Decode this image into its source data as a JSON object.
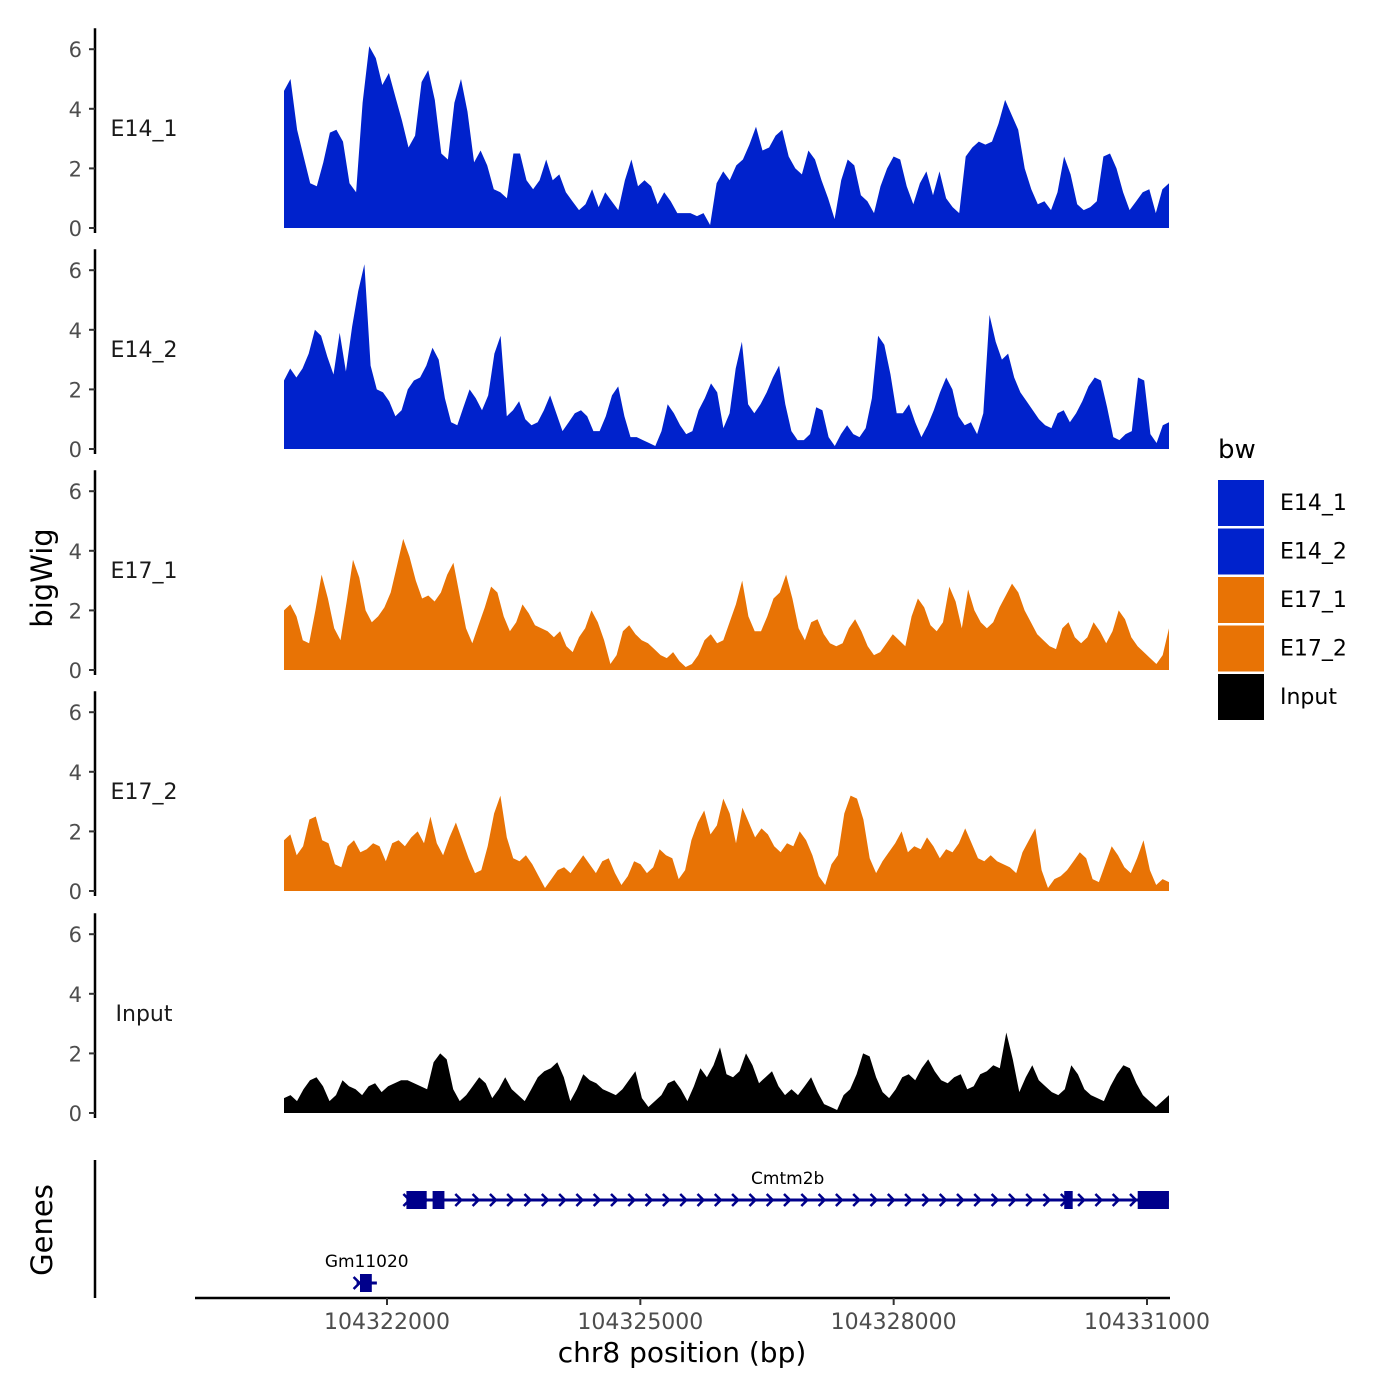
{
  "chart_data": {
    "type": "area",
    "y_axis_title": "bigWig",
    "genes_axis_title": "Genes",
    "x_axis_title": "chr8 position (bp)",
    "x_range": [
      104319300,
      104331300
    ],
    "x_ticks": [
      {
        "value": 104322000,
        "label": "104322000"
      },
      {
        "value": 104325000,
        "label": "104325000"
      },
      {
        "value": 104328000,
        "label": "104328000"
      },
      {
        "value": 104331000,
        "label": "104331000"
      }
    ],
    "y_range": [
      0,
      6.5
    ],
    "y_ticks": [
      {
        "value": 0,
        "label": "0"
      },
      {
        "value": 2,
        "label": "2"
      },
      {
        "value": 4,
        "label": "4"
      },
      {
        "value": 6,
        "label": "6"
      }
    ],
    "x_start": 104320780,
    "x_end": 104331260,
    "legend": {
      "title": "bw",
      "placement": "right",
      "entries": [
        {
          "name": "E14_1",
          "color": "#0022CC"
        },
        {
          "name": "E14_2",
          "color": "#0022CC"
        },
        {
          "name": "E17_1",
          "color": "#E87305"
        },
        {
          "name": "E17_2",
          "color": "#E87305"
        },
        {
          "name": "Input",
          "color": "#000000"
        }
      ]
    },
    "series": [
      {
        "name": "E14_1",
        "color": "#0022CC",
        "values": [
          4.6,
          5,
          3.3,
          2.4,
          1.5,
          1.4,
          2.2,
          3.2,
          3.3,
          2.9,
          1.5,
          1.2,
          4.2,
          6.1,
          5.7,
          4.8,
          5.2,
          4.4,
          3.6,
          2.7,
          3.1,
          4.9,
          5.3,
          4.3,
          2.5,
          2.3,
          4.2,
          5,
          3.9,
          2.2,
          2.6,
          2.1,
          1.3,
          1.2,
          1,
          2.5,
          2.5,
          1.6,
          1.3,
          1.6,
          2.3,
          1.6,
          1.8,
          1.2,
          0.9,
          0.6,
          0.8,
          1.3,
          0.7,
          1.2,
          0.9,
          0.6,
          1.6,
          2.3,
          1.4,
          1.6,
          1.4,
          0.8,
          1.2,
          0.9,
          0.5,
          0.5,
          0.5,
          0.4,
          0.5,
          0.1,
          1.5,
          1.9,
          1.6,
          2.1,
          2.3,
          2.8,
          3.4,
          2.6,
          2.7,
          3.1,
          3.3,
          2.4,
          2,
          1.8,
          2.6,
          2.3,
          1.6,
          1,
          0.3,
          1.6,
          2.3,
          2.1,
          1.1,
          0.9,
          0.5,
          1.4,
          2,
          2.4,
          2.3,
          1.4,
          0.8,
          1.5,
          1.9,
          1.1,
          1.9,
          1,
          0.7,
          0.5,
          2.4,
          2.7,
          2.9,
          2.8,
          2.9,
          3.5,
          4.3,
          3.8,
          3.3,
          2,
          1.3,
          0.8,
          0.9,
          0.6,
          1.2,
          2.4,
          1.8,
          0.8,
          0.6,
          0.7,
          0.9,
          2.4,
          2.5,
          2,
          1.2,
          0.6,
          0.9,
          1.2,
          1.3,
          0.5,
          1.3,
          1.5
        ]
      },
      {
        "name": "E14_2",
        "color": "#0022CC",
        "values": [
          2.3,
          2.7,
          2.4,
          2.7,
          3.2,
          4,
          3.8,
          3.1,
          2.5,
          3.9,
          2.6,
          4.1,
          5.3,
          6.2,
          2.8,
          2,
          1.9,
          1.6,
          1.1,
          1.3,
          2,
          2.3,
          2.4,
          2.8,
          3.4,
          3,
          1.7,
          0.9,
          0.8,
          1.4,
          2,
          1.7,
          1.3,
          1.8,
          3.2,
          3.8,
          1.1,
          1.3,
          1.6,
          1,
          0.8,
          0.9,
          1.3,
          1.8,
          1.2,
          0.6,
          0.9,
          1.2,
          1.3,
          1.1,
          0.6,
          0.6,
          1.1,
          1.8,
          2.1,
          1.1,
          0.4,
          0.4,
          0.3,
          0.2,
          0.1,
          0.6,
          1.5,
          1.2,
          0.8,
          0.5,
          0.6,
          1.3,
          1.7,
          2.2,
          1.9,
          0.7,
          1.2,
          2.7,
          3.6,
          1.5,
          1.2,
          1.5,
          1.9,
          2.4,
          2.8,
          1.5,
          0.6,
          0.3,
          0.3,
          0.5,
          1.4,
          1.3,
          0.4,
          0.1,
          0.5,
          0.8,
          0.5,
          0.4,
          0.7,
          1.7,
          3.8,
          3.5,
          2.5,
          1.2,
          1.2,
          1.5,
          0.9,
          0.4,
          0.8,
          1.3,
          1.9,
          2.4,
          2,
          1.1,
          0.8,
          0.9,
          0.5,
          1.2,
          4.5,
          3.6,
          3,
          3.2,
          2.4,
          1.9,
          1.6,
          1.3,
          1,
          0.8,
          0.7,
          1.2,
          1.3,
          0.9,
          1.2,
          1.6,
          2.1,
          2.4,
          2.3,
          1.4,
          0.4,
          0.3,
          0.5,
          0.6,
          2.4,
          2.3,
          0.5,
          0.2,
          0.8,
          0.9
        ]
      },
      {
        "name": "E17_1",
        "color": "#E87305",
        "values": [
          2,
          2.2,
          1.8,
          1,
          0.9,
          2,
          3.2,
          2.4,
          1.4,
          1,
          2.3,
          3.7,
          3.1,
          2,
          1.6,
          1.8,
          2.1,
          2.6,
          3.5,
          4.4,
          3.8,
          3,
          2.4,
          2.5,
          2.3,
          2.6,
          3.2,
          3.6,
          2.5,
          1.4,
          0.9,
          1.5,
          2.1,
          2.8,
          2.6,
          1.8,
          1.3,
          1.6,
          2.2,
          1.9,
          1.5,
          1.4,
          1.3,
          1.1,
          1.3,
          0.8,
          0.6,
          1.1,
          1.4,
          2,
          1.6,
          1,
          0.2,
          0.5,
          1.3,
          1.5,
          1.2,
          1,
          0.9,
          0.7,
          0.5,
          0.4,
          0.6,
          0.3,
          0.1,
          0.2,
          0.5,
          1,
          1.2,
          0.9,
          1,
          1.6,
          2.2,
          3,
          1.8,
          1.3,
          1.3,
          1.8,
          2.4,
          2.6,
          3.2,
          2.4,
          1.4,
          1,
          1.6,
          1.7,
          1.2,
          0.9,
          0.8,
          0.9,
          1.4,
          1.7,
          1.3,
          0.8,
          0.5,
          0.6,
          0.9,
          1.2,
          1,
          0.8,
          1.8,
          2.4,
          2.1,
          1.5,
          1.3,
          1.6,
          2.8,
          2.3,
          1.4,
          2.7,
          2,
          1.6,
          1.4,
          1.6,
          2.1,
          2.5,
          2.9,
          2.6,
          2,
          1.6,
          1.2,
          1,
          0.8,
          0.7,
          1.4,
          1.6,
          1.1,
          0.9,
          1.1,
          1.6,
          1.3,
          0.9,
          1.3,
          2,
          1.7,
          1.1,
          0.8,
          0.6,
          0.4,
          0.2,
          0.5,
          1.4
        ]
      },
      {
        "name": "E17_2",
        "color": "#E87305",
        "values": [
          1.7,
          1.9,
          1.2,
          1.5,
          2.4,
          2.5,
          1.7,
          1.6,
          0.9,
          0.8,
          1.5,
          1.7,
          1.3,
          1.4,
          1.6,
          1.5,
          1,
          1.6,
          1.7,
          1.5,
          1.8,
          2,
          1.6,
          2.5,
          1.6,
          1.2,
          1.8,
          2.3,
          1.7,
          1.1,
          0.6,
          0.7,
          1.5,
          2.6,
          3.2,
          1.8,
          1.1,
          1,
          1.2,
          0.9,
          0.5,
          0.1,
          0.4,
          0.7,
          0.8,
          0.6,
          0.9,
          1.2,
          0.9,
          0.6,
          1,
          1.1,
          0.6,
          0.2,
          0.5,
          1,
          0.9,
          0.6,
          0.8,
          1.4,
          1.2,
          1.1,
          0.4,
          0.7,
          1.7,
          2.3,
          2.7,
          1.9,
          2.2,
          3.1,
          2.6,
          1.6,
          2.8,
          2.3,
          1.8,
          2.1,
          1.9,
          1.5,
          1.3,
          1.6,
          1.5,
          2,
          1.7,
          1.2,
          0.5,
          0.2,
          0.9,
          1.2,
          2.6,
          3.2,
          3.1,
          2.4,
          1.1,
          0.6,
          1,
          1.3,
          1.6,
          2,
          1.3,
          1.5,
          1.4,
          1.8,
          1.5,
          1.1,
          1.4,
          1.3,
          1.6,
          2.1,
          1.6,
          1.1,
          1,
          1.2,
          1,
          0.9,
          0.8,
          0.6,
          1.3,
          1.7,
          2.1,
          0.7,
          0.1,
          0.4,
          0.5,
          0.7,
          1,
          1.3,
          1.1,
          0.4,
          0.3,
          0.9,
          1.5,
          1.2,
          0.8,
          0.6,
          1.1,
          1.7,
          0.7,
          0.2,
          0.4,
          0.3
        ]
      },
      {
        "name": "Input",
        "color": "#000000",
        "values": [
          0.5,
          0.6,
          0.4,
          0.8,
          1.1,
          1.2,
          0.9,
          0.4,
          0.6,
          1.1,
          0.9,
          0.8,
          0.6,
          0.9,
          1,
          0.7,
          0.9,
          1,
          1.1,
          1.1,
          1,
          0.9,
          0.8,
          1.7,
          2,
          1.8,
          0.8,
          0.4,
          0.6,
          0.9,
          1.2,
          1,
          0.5,
          0.8,
          1.2,
          0.8,
          0.6,
          0.4,
          0.8,
          1.2,
          1.4,
          1.5,
          1.7,
          1.2,
          0.4,
          0.8,
          1.3,
          1.1,
          1,
          0.8,
          0.7,
          0.6,
          0.8,
          1.1,
          1.4,
          0.5,
          0.2,
          0.4,
          0.6,
          1,
          1.1,
          0.8,
          0.4,
          0.9,
          1.5,
          1.2,
          1.6,
          2.2,
          1.3,
          1.2,
          1.4,
          2,
          1.6,
          1,
          1.2,
          1.4,
          0.9,
          0.6,
          0.8,
          0.6,
          0.9,
          1.2,
          0.7,
          0.3,
          0.2,
          0.1,
          0.6,
          0.8,
          1.3,
          2,
          1.9,
          1.2,
          0.7,
          0.5,
          0.8,
          1.2,
          1.3,
          1.1,
          1.5,
          1.8,
          1.4,
          1.1,
          1,
          1.2,
          1.3,
          0.8,
          0.9,
          1.3,
          1.4,
          1.6,
          1.5,
          2.7,
          1.8,
          0.7,
          1.2,
          1.6,
          1.1,
          0.9,
          0.7,
          0.6,
          0.8,
          1.6,
          1.3,
          0.8,
          0.6,
          0.5,
          0.4,
          0.9,
          1.3,
          1.6,
          1.5,
          1,
          0.6,
          0.4,
          0.2,
          0.4,
          0.6
        ]
      }
    ],
    "genes": [
      {
        "name": "Cmtm2b",
        "start": 104322230,
        "end": 104331260,
        "strand": "+",
        "exons": [
          [
            104322230,
            104322470
          ],
          [
            104322540,
            104322680
          ],
          [
            104330020,
            104330120
          ],
          [
            104330890,
            104331260
          ]
        ]
      },
      {
        "name": "Gm11020",
        "start": 104321640,
        "end": 104321880,
        "strand": "+",
        "exons": [
          [
            104321680,
            104321820
          ]
        ]
      }
    ]
  }
}
